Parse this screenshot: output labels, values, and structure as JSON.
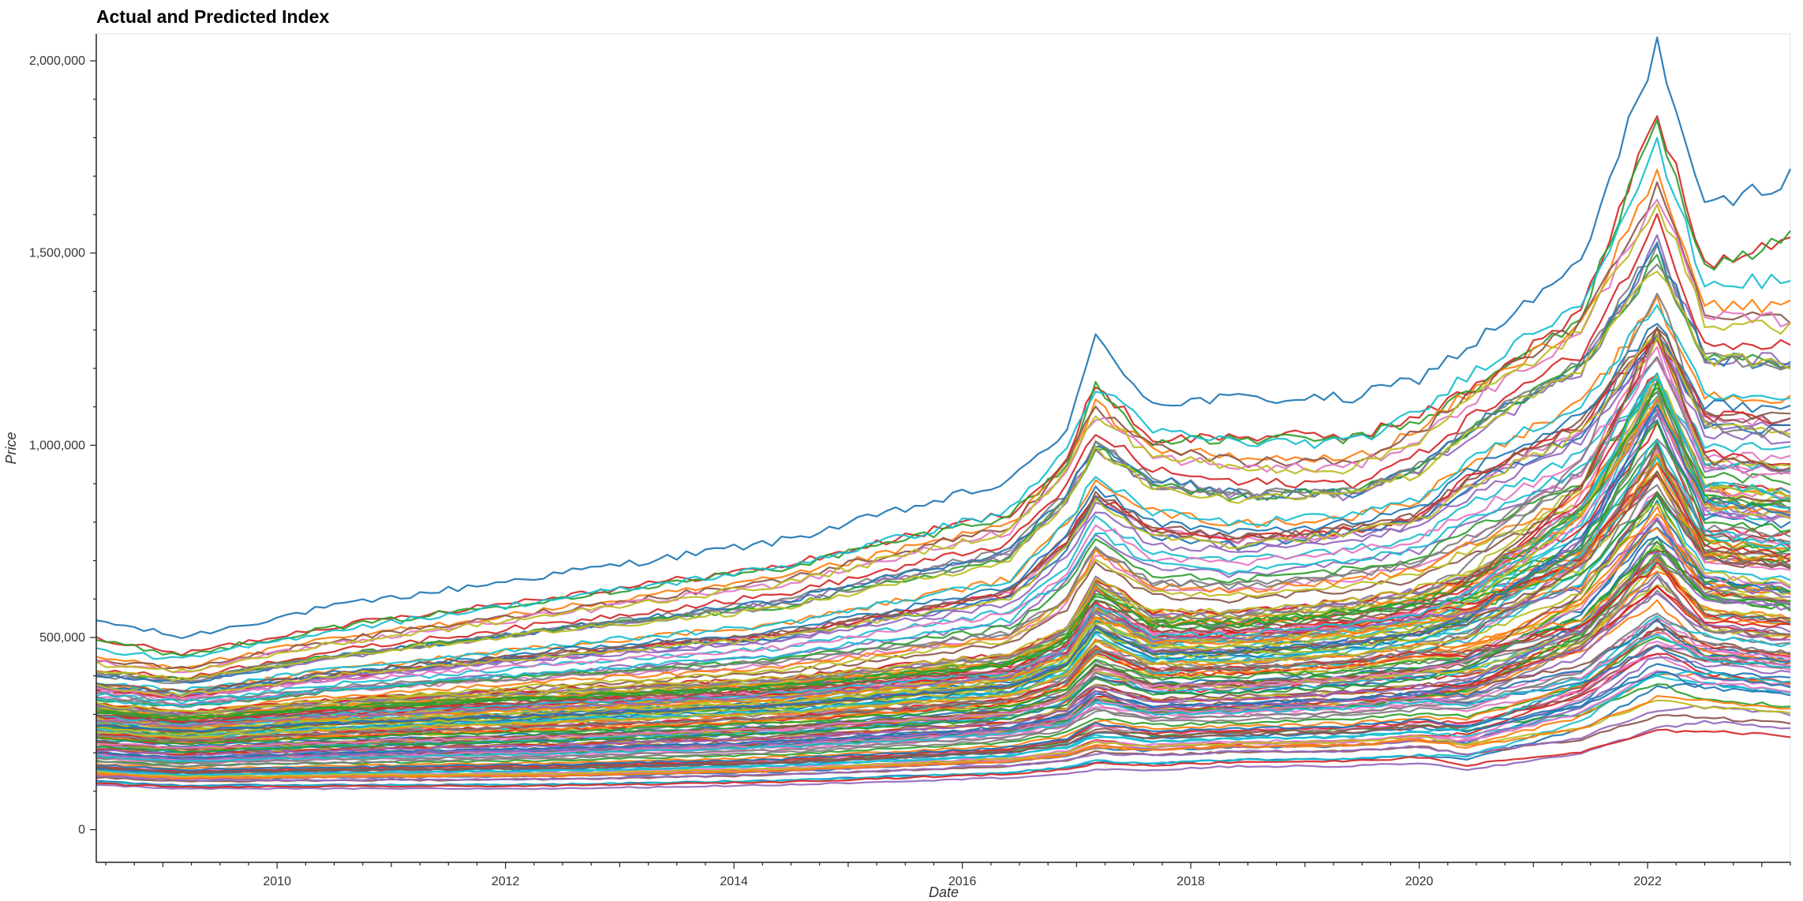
{
  "chart_data": {
    "type": "line",
    "title": "Actual and Predicted Index",
    "xlabel": "Date",
    "ylabel": "Price",
    "x_range": [
      "2008-06-01",
      "2023-04-01"
    ],
    "ylim": [
      -85000,
      2070000
    ],
    "grid": false,
    "legend": "none",
    "x_ticks": [
      "2010",
      "2012",
      "2014",
      "2016",
      "2018",
      "2020",
      "2022"
    ],
    "y_ticks": [
      0,
      500000,
      1000000,
      1500000,
      2000000
    ],
    "y_tick_labels": [
      "0",
      "500,000",
      "1,000,000",
      "1,500,000",
      "2,000,000"
    ],
    "series_count": 160,
    "palette": [
      "#1f77b4",
      "#d62728",
      "#2ca02c",
      "#ff7f0e",
      "#9467bd",
      "#8c564b",
      "#e377c2",
      "#7f7f7f",
      "#bcbd22",
      "#17becf"
    ],
    "shape": {
      "dates": [
        "2008-06",
        "2009-03",
        "2010-06",
        "2012-06",
        "2014-06",
        "2016-06",
        "2016-12",
        "2017-03",
        "2017-09",
        "2018-06",
        "2019-06",
        "2020-01",
        "2020-06",
        "2021-06",
        "2022-02",
        "2022-07",
        "2023-04"
      ],
      "representative_series": [
        {
          "name": "top_series",
          "values": [
            500000,
            460000,
            530000,
            610000,
            690000,
            830000,
            960000,
            1170000,
            1020000,
            1030000,
            1030000,
            1080000,
            1150000,
            1350000,
            1880000,
            1480000,
            1560000
          ]
        },
        {
          "name": "upper_group",
          "values": [
            430000,
            410000,
            480000,
            560000,
            640000,
            780000,
            940000,
            1080000,
            980000,
            940000,
            940000,
            1020000,
            1120000,
            1300000,
            1640000,
            1320000,
            1300000
          ]
        },
        {
          "name": "upper_middle",
          "values": [
            370000,
            350000,
            400000,
            460000,
            510000,
            620000,
            760000,
            880000,
            790000,
            760000,
            790000,
            820000,
            920000,
            1060000,
            1300000,
            1090000,
            1080000
          ]
        },
        {
          "name": "middle",
          "values": [
            320000,
            300000,
            330000,
            360000,
            390000,
            450000,
            520000,
            650000,
            560000,
            560000,
            590000,
            620000,
            650000,
            780000,
            1050000,
            780000,
            760000
          ]
        },
        {
          "name": "lower_band",
          "values": [
            120000,
            110000,
            110000,
            110000,
            120000,
            140000,
            150000,
            160000,
            160000,
            170000,
            170000,
            180000,
            160000,
            210000,
            280000,
            300000,
            280000
          ]
        }
      ]
    }
  }
}
